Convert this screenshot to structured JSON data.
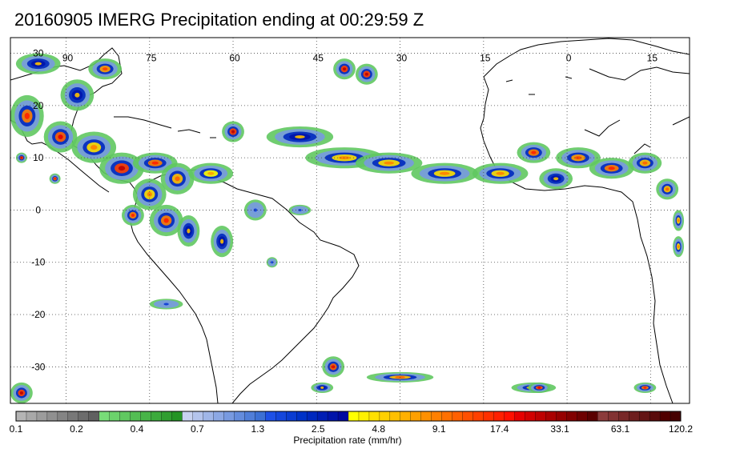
{
  "title": "20160905 IMERG Precipitation ending at 00:29:59 Z",
  "map": {
    "region": "Atlantic Ocean / Americas / Africa",
    "projection": "equirectangular",
    "lon_range": [
      -100,
      22
    ],
    "lat_range": [
      -37,
      33
    ],
    "lon_ticks": [
      "90",
      "75",
      "60",
      "45",
      "30",
      "15",
      "0",
      "15"
    ],
    "lat_ticks": [
      "30",
      "20",
      "10",
      "0",
      "-10",
      "-20",
      "-30"
    ],
    "gridlines": "dotted"
  },
  "colorbar": {
    "label": "Precipitation rate (mm/hr)",
    "tick_labels": [
      "0.1",
      "0.2",
      "0.4",
      "0.7",
      "1.3",
      "2.5",
      "4.8",
      "9.1",
      "17.4",
      "33.1",
      "63.1",
      "120.2"
    ],
    "colors": [
      "#b4b4b4",
      "#a8a8a8",
      "#9c9c9c",
      "#909090",
      "#848484",
      "#787878",
      "#6c6c6c",
      "#606060",
      "#78dc78",
      "#6cd26c",
      "#60c860",
      "#54be54",
      "#48b448",
      "#3caa3c",
      "#309e30",
      "#249424",
      "#c8d2f0",
      "#b4c4ec",
      "#a0b6e8",
      "#8ca8e4",
      "#789ae0",
      "#648cdc",
      "#507ed8",
      "#3c70d4",
      "#1e50e6",
      "#1446dc",
      "#0a3cd2",
      "#0032c8",
      "#0028be",
      "#001eb4",
      "#0014aa",
      "#000aa0",
      "#ffff00",
      "#fff000",
      "#ffe000",
      "#ffd000",
      "#ffc000",
      "#ffb000",
      "#ffa000",
      "#ff9000",
      "#ff8000",
      "#ff7000",
      "#ff6000",
      "#ff5000",
      "#ff4000",
      "#ff3000",
      "#ff2000",
      "#ff1000",
      "#e60000",
      "#d20000",
      "#be0000",
      "#aa0000",
      "#960000",
      "#820000",
      "#6e0000",
      "#5a0000",
      "#8c3c3c",
      "#823232",
      "#782828",
      "#6e1e1e",
      "#641414",
      "#5a0a0a",
      "#500000",
      "#460000"
    ]
  }
}
